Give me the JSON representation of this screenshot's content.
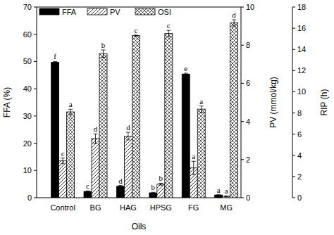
{
  "chart_data": {
    "type": "bar",
    "x_label": "Oils",
    "y_label": "FFA (%)",
    "y2_label": "PV (mmol/kg)",
    "y3_label": "RIP (h)",
    "categories": [
      "Control",
      "BG",
      "HAG",
      "HPSG",
      "FG",
      "MG"
    ],
    "ylim": [
      0,
      70
    ],
    "yticks": [
      0,
      10,
      20,
      30,
      40,
      50,
      60,
      70
    ],
    "y2lim": [
      0,
      10
    ],
    "y2ticks": [
      0,
      2,
      4,
      6,
      8,
      10
    ],
    "y3lim": [
      0,
      18
    ],
    "y3ticks": [
      0,
      2,
      4,
      6,
      8,
      10,
      12,
      14,
      16,
      18
    ],
    "legend": "top-left",
    "series": [
      {
        "name": "FFA",
        "color": "#000000",
        "values": [
          49.7,
          2.3,
          4.2,
          1.8,
          45.4,
          1.0
        ],
        "errors": [
          0.3,
          0.2,
          0.3,
          0.2,
          0.3,
          0.1
        ],
        "letters": [
          "f",
          "c",
          "d",
          "b",
          "e",
          "a"
        ]
      },
      {
        "name": "PV",
        "color": "#000000",
        "axis": "y2",
        "values": [
          1.93,
          3.1,
          3.23,
          0.71,
          1.56,
          0.07
        ],
        "errors": [
          0.15,
          0.25,
          0.2,
          0.05,
          0.35,
          0.03
        ],
        "letters": [
          "c",
          "d",
          "d",
          "b",
          "a",
          "a"
        ]
      },
      {
        "name": "OSI",
        "color": "#000000",
        "axis": "y3",
        "values": [
          8.1,
          13.6,
          15.3,
          15.5,
          8.36,
          16.5
        ],
        "errors": [
          0.25,
          0.35,
          0.05,
          0.3,
          0.3,
          0.3
        ],
        "letters": [
          "a",
          "b",
          "c",
          "c",
          "a",
          "d"
        ]
      }
    ]
  }
}
